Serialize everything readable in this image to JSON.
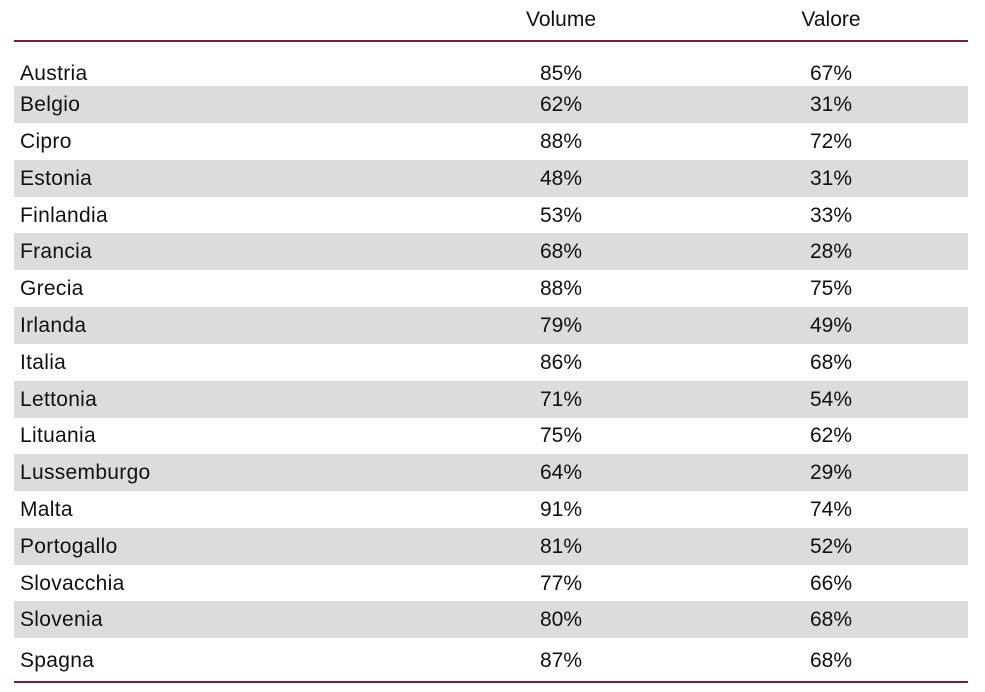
{
  "table": {
    "headers": {
      "country": "",
      "volume": "Volume",
      "valore": "Valore"
    },
    "rows": [
      {
        "country": "Austria",
        "volume": "85%",
        "valore": "67%"
      },
      {
        "country": "Belgio",
        "volume": "62%",
        "valore": "31%"
      },
      {
        "country": "Cipro",
        "volume": "88%",
        "valore": "72%"
      },
      {
        "country": "Estonia",
        "volume": "48%",
        "valore": "31%"
      },
      {
        "country": "Finlandia",
        "volume": "53%",
        "valore": "33%"
      },
      {
        "country": "Francia",
        "volume": "68%",
        "valore": "28%"
      },
      {
        "country": "Grecia",
        "volume": "88%",
        "valore": "75%"
      },
      {
        "country": "Irlanda",
        "volume": "79%",
        "valore": "49%"
      },
      {
        "country": "Italia",
        "volume": "86%",
        "valore": "68%"
      },
      {
        "country": "Lettonia",
        "volume": "71%",
        "valore": "54%"
      },
      {
        "country": "Lituania",
        "volume": "75%",
        "valore": "62%"
      },
      {
        "country": "Lussemburgo",
        "volume": "64%",
        "valore": "29%"
      },
      {
        "country": "Malta",
        "volume": "91%",
        "valore": "74%"
      },
      {
        "country": "Portogallo",
        "volume": "81%",
        "valore": "52%"
      },
      {
        "country": "Slovacchia",
        "volume": "77%",
        "valore": "66%"
      },
      {
        "country": "Slovenia",
        "volume": "80%",
        "valore": "68%"
      },
      {
        "country": "Spagna",
        "volume": "87%",
        "valore": "68%"
      }
    ]
  },
  "colors": {
    "rule": "#7a1f3d",
    "shaded_row": "#dcdcdc",
    "text": "#111111"
  }
}
